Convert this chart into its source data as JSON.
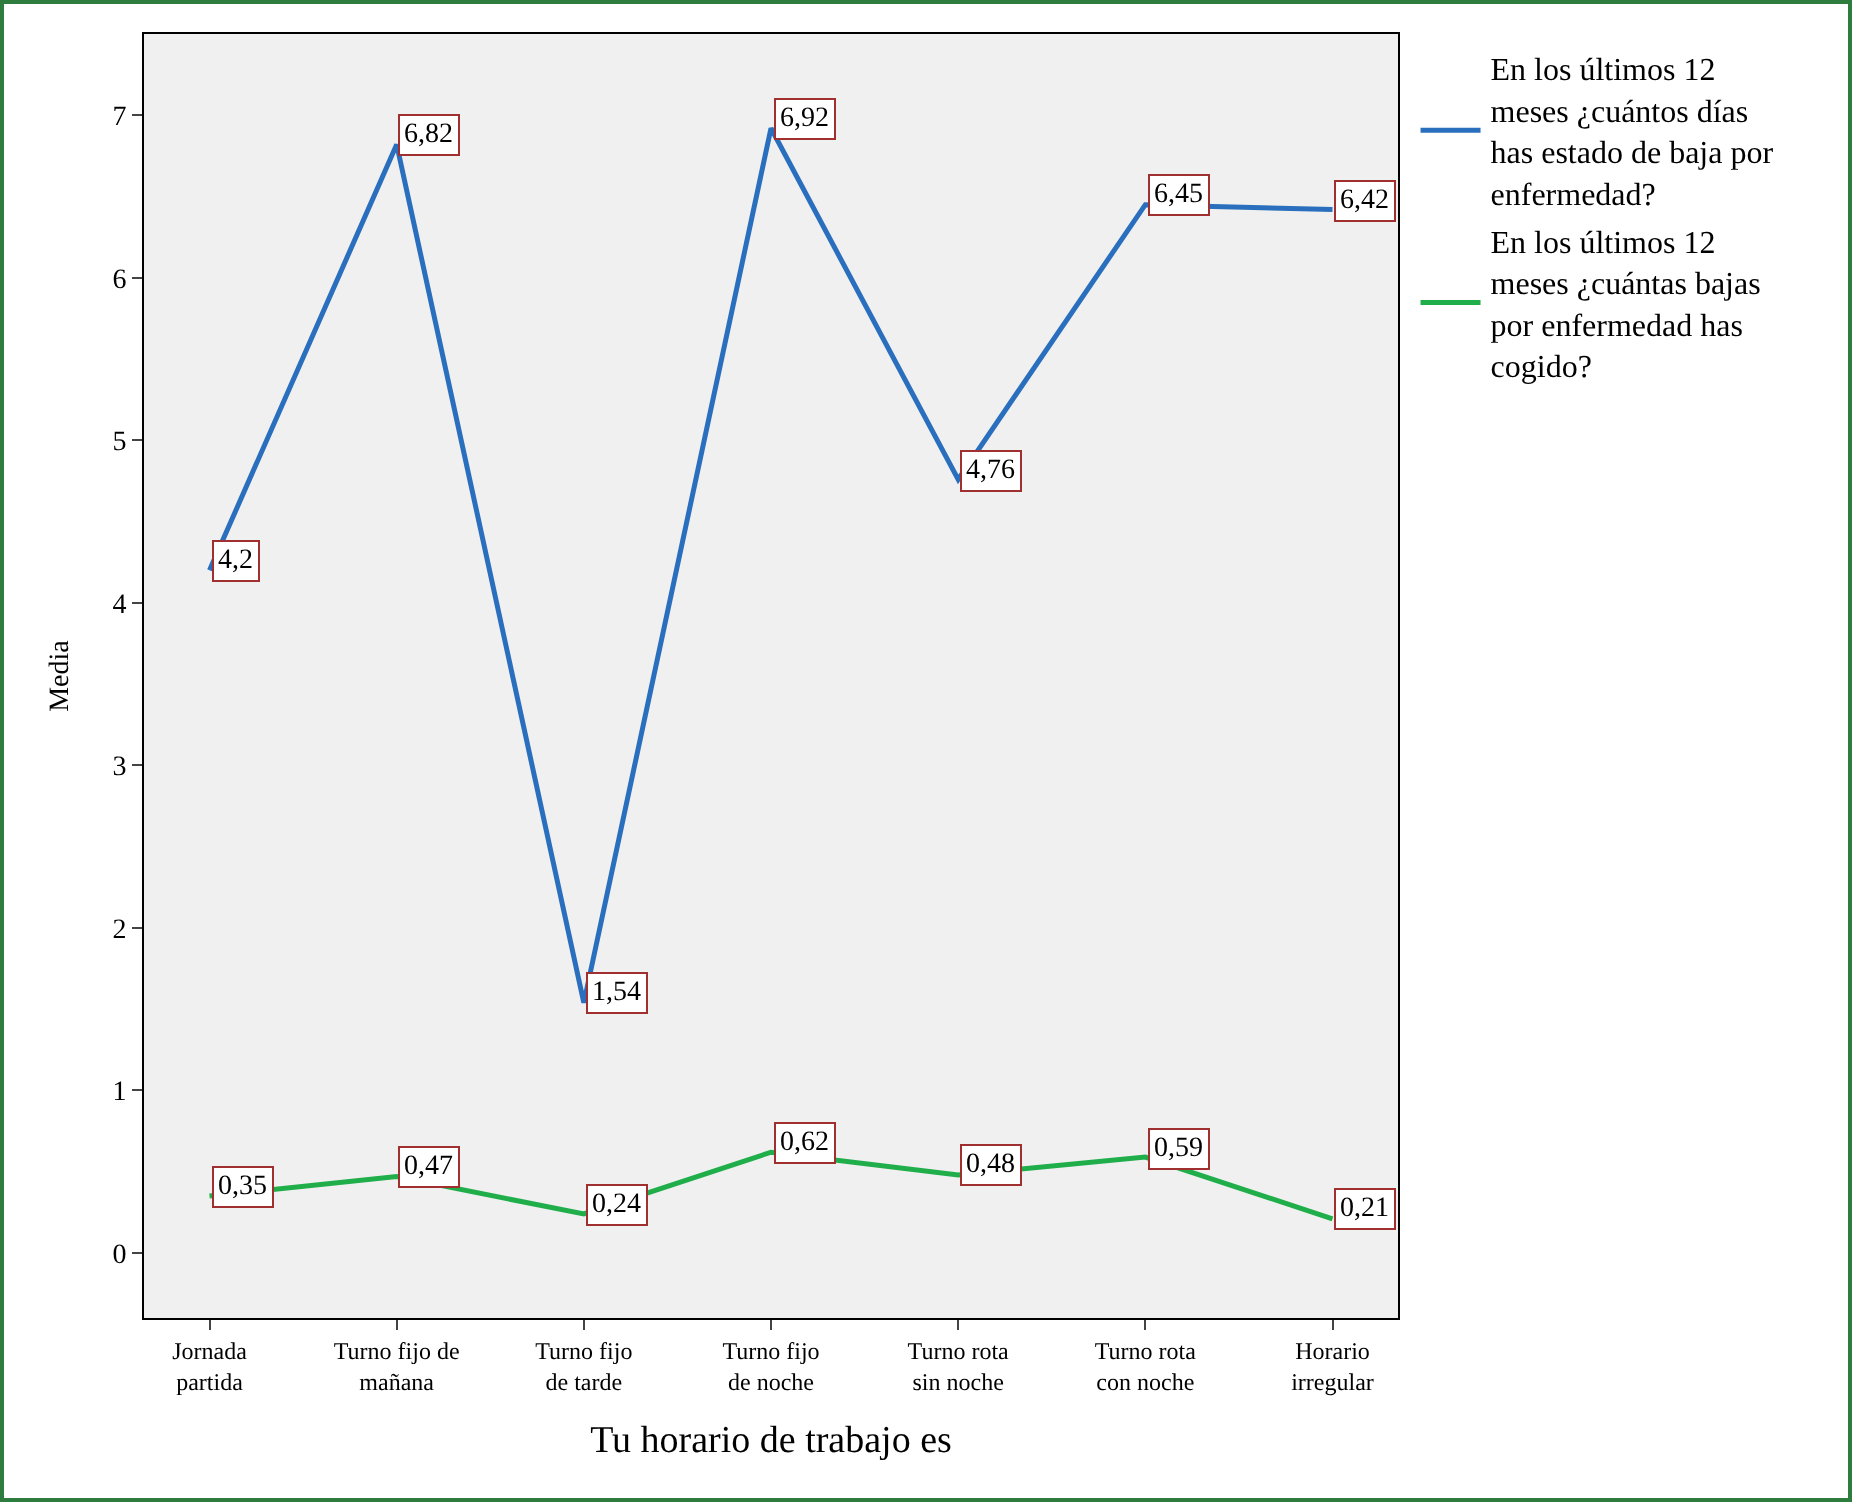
{
  "chart_data": {
    "type": "line",
    "xlabel": "Tu horario de trabajo es",
    "ylabel": "Media",
    "categories": [
      "Jornada\npartida",
      "Turno fijo de\nmañana",
      "Turno fijo\nde tarde",
      "Turno fijo\nde noche",
      "Turno rota\nsin noche",
      "Turno rota\ncon noche",
      "Horario\nirregular"
    ],
    "series": [
      {
        "name": "En los últimos 12 meses ¿cuántos días has estado de baja por enfermedad?",
        "color": "#2a6fbe",
        "values": [
          4.2,
          6.82,
          1.54,
          6.92,
          4.76,
          6.45,
          6.42
        ],
        "value_labels": [
          "4,2",
          "6,82",
          "1,54",
          "6,92",
          "4,76",
          "6,45",
          "6,42"
        ]
      },
      {
        "name": "En los últimos 12 meses ¿cuántas bajas por enfermedad has cogido?",
        "color": "#1fae4a",
        "values": [
          0.35,
          0.47,
          0.24,
          0.62,
          0.48,
          0.59,
          0.21
        ],
        "value_labels": [
          "0,35",
          "0,47",
          "0,24",
          "0,62",
          "0,48",
          "0,59",
          "0,21"
        ]
      }
    ],
    "ylim": [
      -0.4,
      7.5
    ],
    "yticks": [
      0,
      1,
      2,
      3,
      4,
      5,
      6,
      7
    ],
    "grid": false,
    "legend": "top right",
    "marker": "none",
    "line_style": "solid"
  }
}
